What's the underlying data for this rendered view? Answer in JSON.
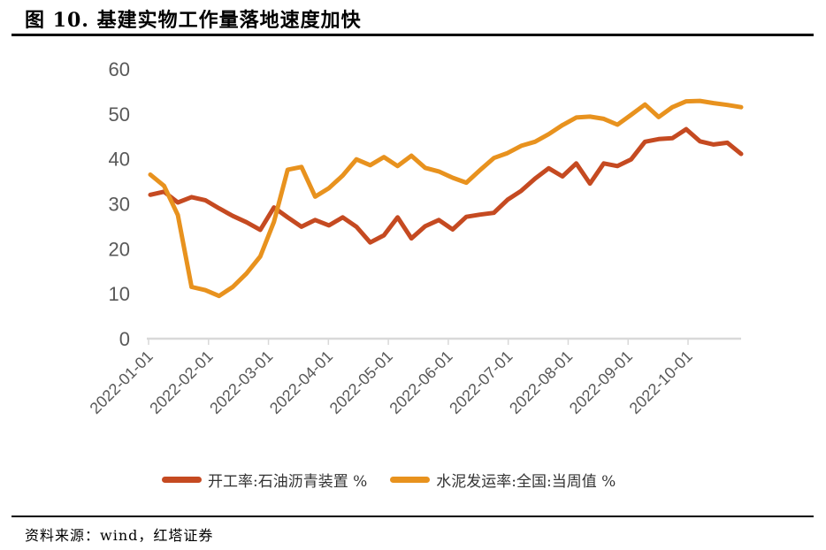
{
  "figure": {
    "title": "图 10. 基建实物工作量落地速度加快",
    "source": "资料来源：wind，红塔证券"
  },
  "colors": {
    "series1": "#C54A21",
    "series2": "#E8921E",
    "axis_line": "#D9D9D9",
    "tick_label": "#595959"
  },
  "chart_data": {
    "type": "line",
    "title": "",
    "xlabel": "",
    "ylabel": "",
    "grid": false,
    "legend_position": "bottom",
    "ylim": [
      0,
      60
    ],
    "y_ticks": [
      0,
      10,
      20,
      30,
      40,
      50,
      60
    ],
    "x_tick_labels": [
      "2022-01-01",
      "2022-02-01",
      "2022-03-01",
      "2022-04-01",
      "2022-05-01",
      "2022-06-01",
      "2022-07-01",
      "2022-08-01",
      "2022-09-01",
      "2022-10-01"
    ],
    "x_frequency": "weekly",
    "x_range_note": "weekly points from 2022-01-01 to 2022-10-28",
    "series": [
      {
        "name": "开工率:石油沥青装置 %",
        "color": "#C54A21",
        "values": [
          32.0,
          32.7,
          30.3,
          31.5,
          30.8,
          29.0,
          27.3,
          25.9,
          24.2,
          29.2,
          27.0,
          24.9,
          26.4,
          25.2,
          27.0,
          24.9,
          21.4,
          23.0,
          27.0,
          22.3,
          25.0,
          26.4,
          24.3,
          27.1,
          27.6,
          28.0,
          30.9,
          32.9,
          35.6,
          37.9,
          36.1,
          39.0,
          34.5,
          39.0,
          38.4,
          39.9,
          43.8,
          44.4,
          44.6,
          46.6,
          43.9,
          43.2,
          43.6,
          41.1
        ]
      },
      {
        "name": "水泥发运率:全国:当周值 %",
        "color": "#E8921E",
        "values": [
          36.5,
          34.0,
          27.5,
          11.5,
          10.8,
          9.5,
          11.5,
          14.5,
          18.3,
          26.0,
          37.6,
          38.2,
          31.6,
          33.5,
          36.3,
          39.9,
          38.6,
          40.4,
          38.4,
          40.7,
          38.0,
          37.2,
          35.8,
          34.7,
          37.5,
          40.2,
          41.3,
          42.9,
          43.8,
          45.5,
          47.5,
          49.2,
          49.4,
          48.9,
          47.6,
          49.8,
          52.1,
          49.3,
          51.5,
          52.8,
          52.9,
          52.4,
          52.0,
          51.5
        ]
      }
    ]
  }
}
